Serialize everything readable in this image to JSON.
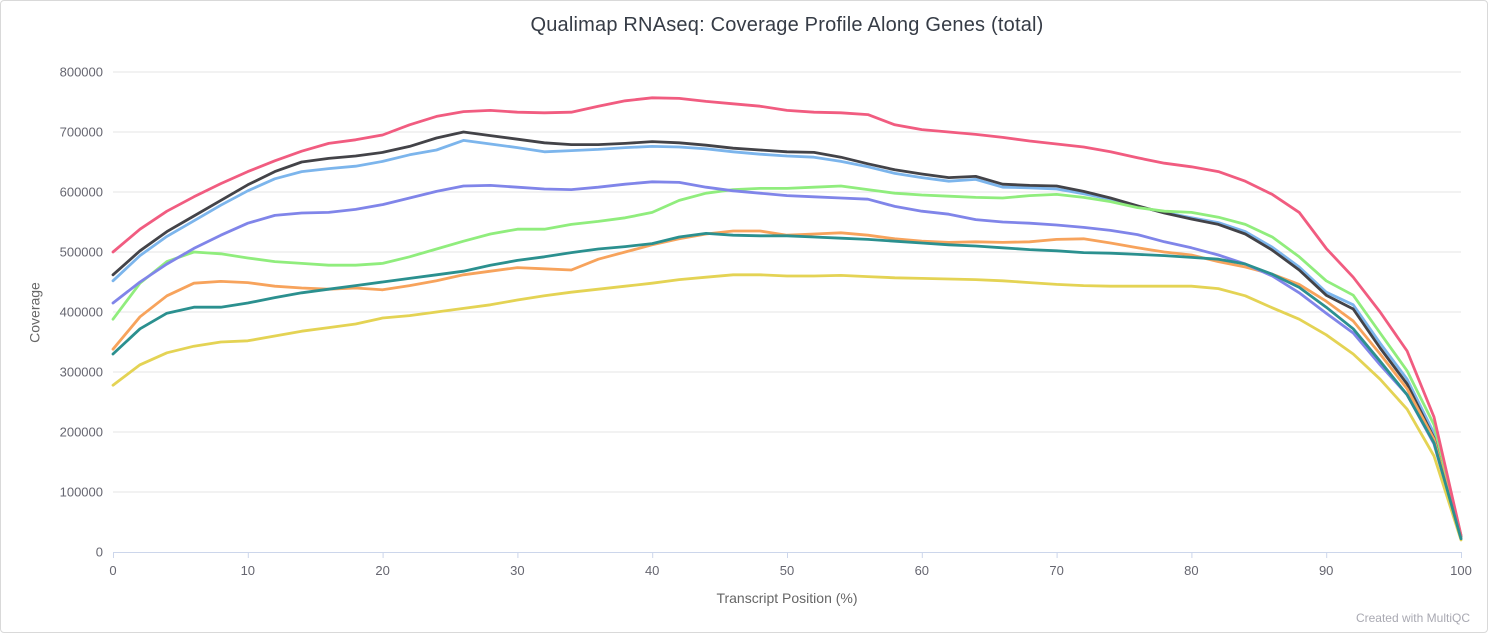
{
  "header": {
    "title": "Qualimap RNAseq: Coverage Profile Along Genes (total)"
  },
  "footer": {
    "credit": "Created with MultiQC"
  },
  "colors": {
    "background": "#ffffff",
    "frame_border": "#d9d9d9",
    "title_text": "#363c46",
    "axis_title_text": "#666666",
    "tick_label_text": "#666670",
    "gridline": "#e6e6e6",
    "axis_line": "#ccd6eb",
    "credit_text": "#a9a9b2"
  },
  "chart_data": {
    "type": "line",
    "title": "Qualimap RNAseq: Coverage Profile Along Genes (total)",
    "xlabel": "Transcript Position (%)",
    "ylabel": "Coverage",
    "xlim": [
      0,
      100
    ],
    "ylim": [
      0,
      800000
    ],
    "x_ticks": [
      0,
      10,
      20,
      30,
      40,
      50,
      60,
      70,
      80,
      90,
      100
    ],
    "y_ticks": [
      0,
      100000,
      200000,
      300000,
      400000,
      500000,
      600000,
      700000,
      800000
    ],
    "grid": "horizontal",
    "legend": "none",
    "line_width": 2.8,
    "x": [
      0,
      2,
      4,
      6,
      8,
      10,
      12,
      14,
      16,
      18,
      20,
      22,
      24,
      26,
      28,
      30,
      32,
      34,
      36,
      38,
      40,
      42,
      44,
      46,
      48,
      50,
      52,
      54,
      56,
      58,
      60,
      62,
      64,
      66,
      68,
      70,
      72,
      74,
      76,
      78,
      80,
      82,
      84,
      86,
      88,
      90,
      92,
      94,
      96,
      98,
      100
    ],
    "series": [
      {
        "id": "series-1",
        "color": "#7cb5ec",
        "values": [
          452000,
          494000,
          526000,
          552000,
          578000,
          602000,
          622000,
          634000,
          639000,
          643000,
          651000,
          662000,
          670000,
          686000,
          680000,
          674000,
          667000,
          669000,
          671000,
          674000,
          676000,
          675000,
          672000,
          667000,
          663000,
          660000,
          658000,
          651000,
          642000,
          631000,
          624000,
          618000,
          621000,
          608000,
          607000,
          605000,
          597000,
          588000,
          576000,
          566000,
          557000,
          549000,
          534000,
          508000,
          475000,
          433000,
          412000,
          348000,
          288000,
          198000,
          26000
        ]
      },
      {
        "id": "series-2",
        "color": "#434348",
        "values": [
          462000,
          502000,
          534000,
          560000,
          586000,
          612000,
          634000,
          650000,
          656000,
          660000,
          666000,
          676000,
          690000,
          700000,
          694000,
          688000,
          682000,
          679000,
          679000,
          681000,
          684000,
          682000,
          678000,
          673000,
          670000,
          667000,
          666000,
          658000,
          647000,
          637000,
          630000,
          624000,
          626000,
          613000,
          611000,
          610000,
          601000,
          590000,
          577000,
          565000,
          555000,
          546000,
          530000,
          503000,
          470000,
          428000,
          405000,
          340000,
          280000,
          190000,
          25000
        ]
      },
      {
        "id": "series-3",
        "color": "#90ed7d",
        "values": [
          388000,
          448000,
          484000,
          500000,
          497000,
          490000,
          484000,
          481000,
          478000,
          478000,
          481000,
          492000,
          505000,
          518000,
          530000,
          538000,
          538000,
          546000,
          551000,
          557000,
          566000,
          586000,
          598000,
          604000,
          606000,
          606000,
          608000,
          610000,
          604000,
          598000,
          595000,
          593000,
          591000,
          590000,
          594000,
          596000,
          591000,
          584000,
          574000,
          568000,
          566000,
          558000,
          546000,
          525000,
          492000,
          452000,
          428000,
          365000,
          302000,
          212000,
          28000
        ]
      },
      {
        "id": "series-4",
        "color": "#f7a35c",
        "values": [
          338000,
          392000,
          427000,
          448000,
          451000,
          449000,
          443000,
          440000,
          438000,
          440000,
          437000,
          444000,
          452000,
          462000,
          468000,
          474000,
          472000,
          470000,
          488000,
          500000,
          512000,
          522000,
          530000,
          535000,
          535000,
          528000,
          530000,
          532000,
          528000,
          522000,
          518000,
          516000,
          517000,
          516000,
          517000,
          521000,
          522000,
          515000,
          507000,
          500000,
          495000,
          484000,
          475000,
          463000,
          446000,
          418000,
          385000,
          330000,
          272000,
          188000,
          24000
        ]
      },
      {
        "id": "series-5",
        "color": "#8085e9",
        "values": [
          415000,
          450000,
          480000,
          506000,
          528000,
          548000,
          561000,
          565000,
          566000,
          571000,
          579000,
          590000,
          601000,
          610000,
          611000,
          608000,
          605000,
          604000,
          608000,
          613000,
          617000,
          616000,
          608000,
          602000,
          598000,
          594000,
          592000,
          590000,
          588000,
          576000,
          568000,
          563000,
          554000,
          550000,
          548000,
          545000,
          541000,
          536000,
          529000,
          517000,
          507000,
          495000,
          480000,
          460000,
          432000,
          398000,
          365000,
          312000,
          262000,
          180000,
          22000
        ]
      },
      {
        "id": "series-6",
        "color": "#f15c80",
        "values": [
          500000,
          538000,
          568000,
          592000,
          614000,
          634000,
          652000,
          668000,
          681000,
          687000,
          695000,
          712000,
          726000,
          734000,
          736000,
          733000,
          732000,
          733000,
          743000,
          752000,
          757000,
          756000,
          751000,
          747000,
          743000,
          736000,
          733000,
          732000,
          729000,
          712000,
          704000,
          700000,
          696000,
          691000,
          685000,
          680000,
          675000,
          667000,
          657000,
          648000,
          642000,
          634000,
          618000,
          596000,
          566000,
          506000,
          458000,
          400000,
          335000,
          225000,
          28000
        ]
      },
      {
        "id": "series-7",
        "color": "#e4d354",
        "values": [
          278000,
          312000,
          332000,
          343000,
          350000,
          352000,
          360000,
          368000,
          374000,
          380000,
          390000,
          394000,
          400000,
          406000,
          412000,
          420000,
          427000,
          433000,
          438000,
          443000,
          448000,
          454000,
          458000,
          462000,
          462000,
          460000,
          460000,
          461000,
          459000,
          457000,
          456000,
          455000,
          454000,
          452000,
          449000,
          446000,
          444000,
          443000,
          443000,
          443000,
          443000,
          439000,
          427000,
          407000,
          388000,
          362000,
          330000,
          288000,
          238000,
          160000,
          20000
        ]
      },
      {
        "id": "series-8",
        "color": "#2b908f",
        "values": [
          330000,
          372000,
          398000,
          408000,
          408000,
          415000,
          424000,
          432000,
          438000,
          444000,
          450000,
          456000,
          462000,
          468000,
          478000,
          486000,
          492000,
          499000,
          505000,
          509000,
          514000,
          525000,
          531000,
          528000,
          527000,
          527000,
          525000,
          523000,
          521000,
          518000,
          515000,
          512000,
          510000,
          507000,
          504000,
          502000,
          499000,
          498000,
          496000,
          494000,
          491000,
          488000,
          480000,
          463000,
          441000,
          408000,
          372000,
          318000,
          262000,
          182000,
          22000
        ]
      }
    ]
  }
}
